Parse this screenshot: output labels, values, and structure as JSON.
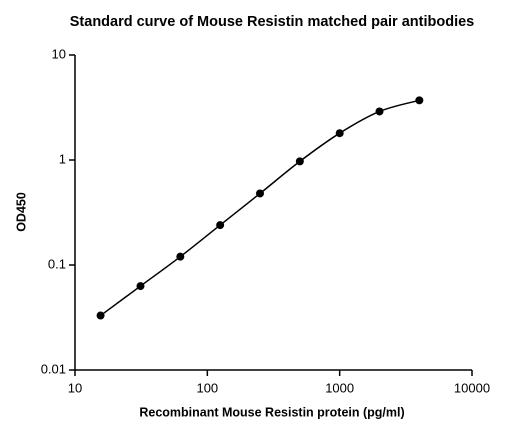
{
  "chart_data": {
    "type": "scatter",
    "title": "Standard curve of Mouse Resistin matched pair antibodies",
    "x_label": "Recombinant Mouse Resistin protein (pg/ml)",
    "y_label": "OD450",
    "x": [
      15.6,
      31.25,
      62.5,
      125,
      250,
      500,
      1000,
      2000,
      4000
    ],
    "series": [
      {
        "color": "#000000",
        "values": [
          0.033,
          0.063,
          0.12,
          0.24,
          0.48,
          0.97,
          1.8,
          2.9,
          3.7
        ]
      }
    ],
    "xscale": "log",
    "yscale": "log",
    "xlim": [
      10,
      10000
    ],
    "ylim": [
      0.01,
      10
    ],
    "xticks": [
      10,
      100,
      1000,
      10000
    ],
    "yticks": [
      0.01,
      0.1,
      1,
      10
    ],
    "fit_curve": true
  }
}
